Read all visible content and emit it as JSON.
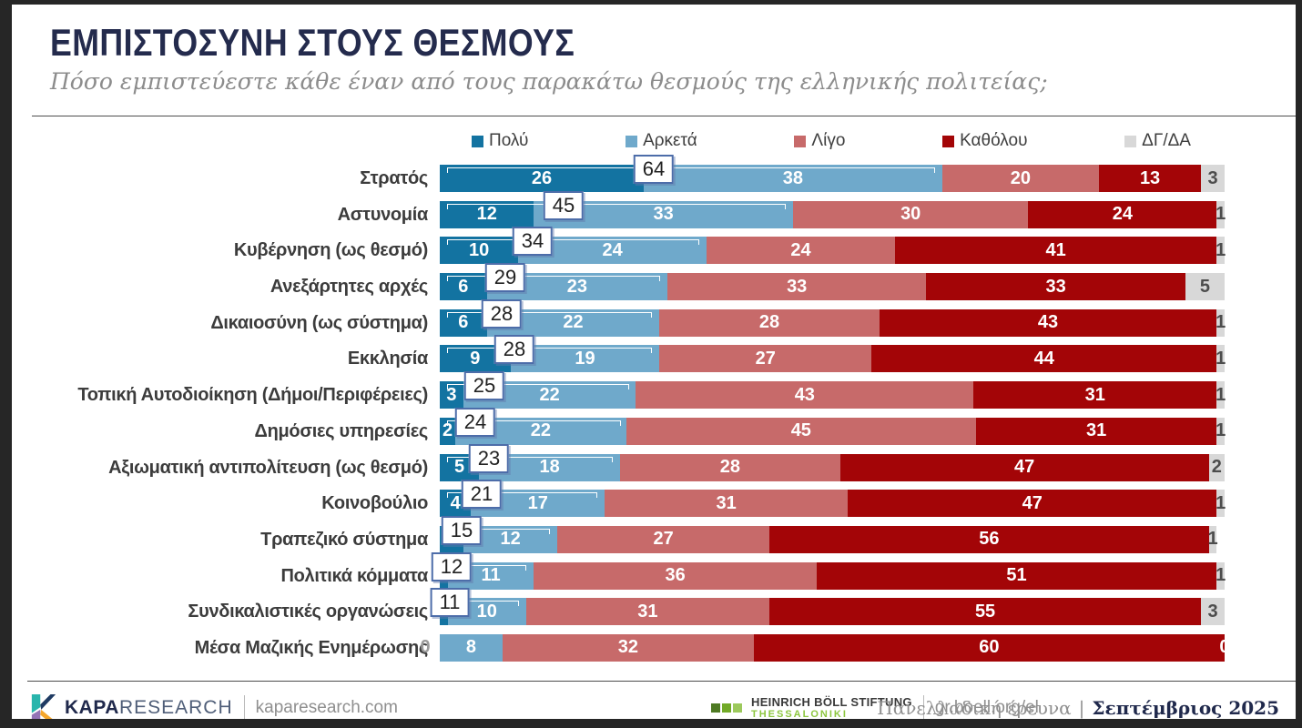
{
  "header": {
    "title": "ΕΜΠΙΣΤΟΣΥΝΗ ΣΤΟΥΣ ΘΕΣΜΟΥΣ",
    "subtitle": "Πόσο εμπιστεύεστε κάθε έναν από τους παρακάτω θεσμούς της ελληνικής πολιτείας;"
  },
  "colors": {
    "very": "#1373a1",
    "quite": "#6fa9cb",
    "little": "#c76a6a",
    "not_at_all": "#a30507",
    "dk_na": "#d8d8d8",
    "callout_border": "#4d6da9",
    "frame": "#262626",
    "title_navy": "#242b4d"
  },
  "chart_data": {
    "type": "bar",
    "orientation": "horizontal",
    "stacked": true,
    "xlim": [
      0,
      100
    ],
    "title": "ΕΜΠΙΣΤΟΣΥΝΗ ΣΤΟΥΣ ΘΕΣΜΟΥΣ",
    "question": "Πόσο εμπιστεύεστε κάθε έναν από τους παρακάτω θεσμούς της ελληνικής πολιτείας;",
    "legend_position": "top",
    "value_labels": true,
    "categories": [
      "Στρατός",
      "Αστυνομία",
      "Κυβέρνηση (ως θεσμό)",
      "Ανεξάρτητες αρχές",
      "Δικαιοσύνη (ως σύστημα)",
      "Εκκλησία",
      "Τοπική Αυτοδιοίκηση (Δήμοι/Περιφέρειες)",
      "Δημόσιες υπηρεσίες",
      "Αξιωματική αντιπολίτευση (ως θεσμό)",
      "Κοινοβούλιο",
      "Τραπεζικό σύστημα",
      "Πολιτικά κόμματα",
      "Συνδικαλιστικές οργανώσεις",
      "Μέσα Μαζικής Ενημέρωσης"
    ],
    "series": [
      {
        "name": "Πολύ",
        "color": "#1373a1",
        "values": [
          26,
          12,
          10,
          6,
          6,
          9,
          3,
          2,
          5,
          4,
          3,
          1,
          1,
          0
        ]
      },
      {
        "name": "Αρκετά",
        "color": "#6fa9cb",
        "values": [
          38,
          33,
          24,
          23,
          22,
          19,
          22,
          22,
          18,
          17,
          12,
          11,
          10,
          8
        ]
      },
      {
        "name": "Λίγο",
        "color": "#c76a6a",
        "values": [
          20,
          30,
          24,
          33,
          28,
          27,
          43,
          45,
          28,
          31,
          27,
          36,
          31,
          32
        ]
      },
      {
        "name": "Καθόλου",
        "color": "#a30507",
        "values": [
          13,
          24,
          41,
          33,
          43,
          44,
          31,
          31,
          47,
          47,
          56,
          51,
          55,
          60
        ]
      },
      {
        "name": "ΔΓ/ΔΑ",
        "color": "#d8d8d8",
        "values": [
          3,
          1,
          1,
          5,
          1,
          1,
          1,
          1,
          2,
          1,
          1,
          1,
          3,
          0
        ]
      }
    ],
    "callouts_very_plus_quite": [
      64,
      45,
      34,
      29,
      28,
      28,
      25,
      24,
      23,
      21,
      15,
      12,
      11,
      null
    ]
  },
  "footer": {
    "brand": {
      "name_bold": "KAPA",
      "name_light": "RESEARCH",
      "site": "kaparesearch.com"
    },
    "partner": {
      "name": "HEINRICH BÖLL STIFTUNG",
      "sub": "THESSALONIKI",
      "site": "gr.boell.org/el"
    },
    "survey": {
      "label": "Πανελλαδική έρευνα",
      "separator": "|",
      "date": "Σεπτέμβριος 2025"
    }
  }
}
